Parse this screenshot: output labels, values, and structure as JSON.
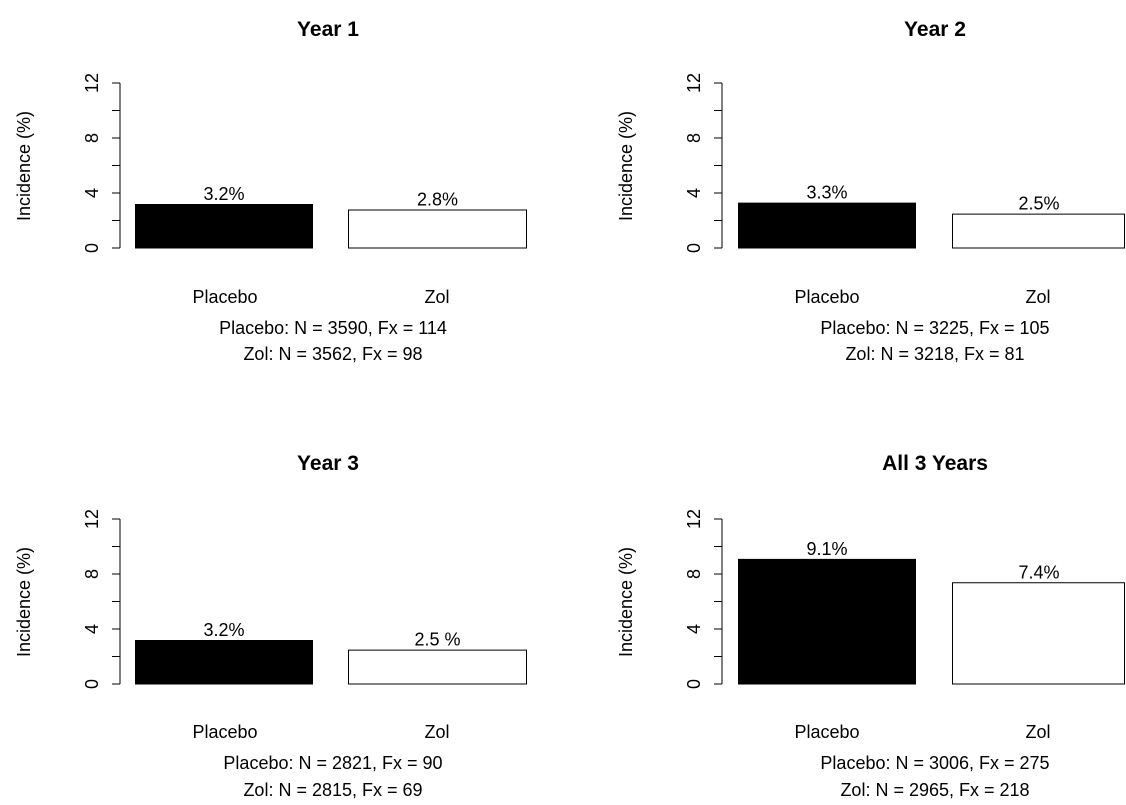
{
  "chart_data": [
    {
      "type": "bar",
      "title": "Year 1",
      "ylabel": "Incidence (%)",
      "ylim": [
        0,
        12
      ],
      "yticks": [
        0,
        4,
        8,
        12
      ],
      "categories": [
        "Placebo",
        "Zol"
      ],
      "values": [
        3.2,
        2.8
      ],
      "data_labels": [
        "3.2%",
        "2.8%"
      ],
      "bar_colors": [
        "#000000",
        "#ffffff"
      ],
      "notes": [
        "Placebo: N = 3590, Fx = 114",
        "Zol: N = 3562, Fx = 98"
      ]
    },
    {
      "type": "bar",
      "title": "Year 2",
      "ylabel": "Incidence (%)",
      "ylim": [
        0,
        12
      ],
      "yticks": [
        0,
        4,
        8,
        12
      ],
      "categories": [
        "Placebo",
        "Zol"
      ],
      "values": [
        3.3,
        2.5
      ],
      "data_labels": [
        "3.3%",
        "2.5%"
      ],
      "bar_colors": [
        "#000000",
        "#ffffff"
      ],
      "notes": [
        "Placebo: N = 3225, Fx = 105",
        "Zol: N = 3218, Fx = 81"
      ]
    },
    {
      "type": "bar",
      "title": "Year 3",
      "ylabel": "Incidence (%)",
      "ylim": [
        0,
        12
      ],
      "yticks": [
        0,
        4,
        8,
        12
      ],
      "categories": [
        "Placebo",
        "Zol"
      ],
      "values": [
        3.2,
        2.5
      ],
      "data_labels": [
        "3.2%",
        "2.5 %"
      ],
      "bar_colors": [
        "#000000",
        "#ffffff"
      ],
      "notes": [
        "Placebo: N = 2821, Fx = 90",
        "Zol: N = 2815, Fx = 69"
      ]
    },
    {
      "type": "bar",
      "title": "All 3 Years",
      "ylabel": "Incidence (%)",
      "ylim": [
        0,
        12
      ],
      "yticks": [
        0,
        4,
        8,
        12
      ],
      "categories": [
        "Placebo",
        "Zol"
      ],
      "values": [
        9.1,
        7.4
      ],
      "data_labels": [
        "9.1%",
        "7.4%"
      ],
      "bar_colors": [
        "#000000",
        "#ffffff"
      ],
      "notes": [
        "Placebo: N = 3006, Fx = 275",
        "Zol: N = 2965, Fx = 218"
      ]
    }
  ]
}
